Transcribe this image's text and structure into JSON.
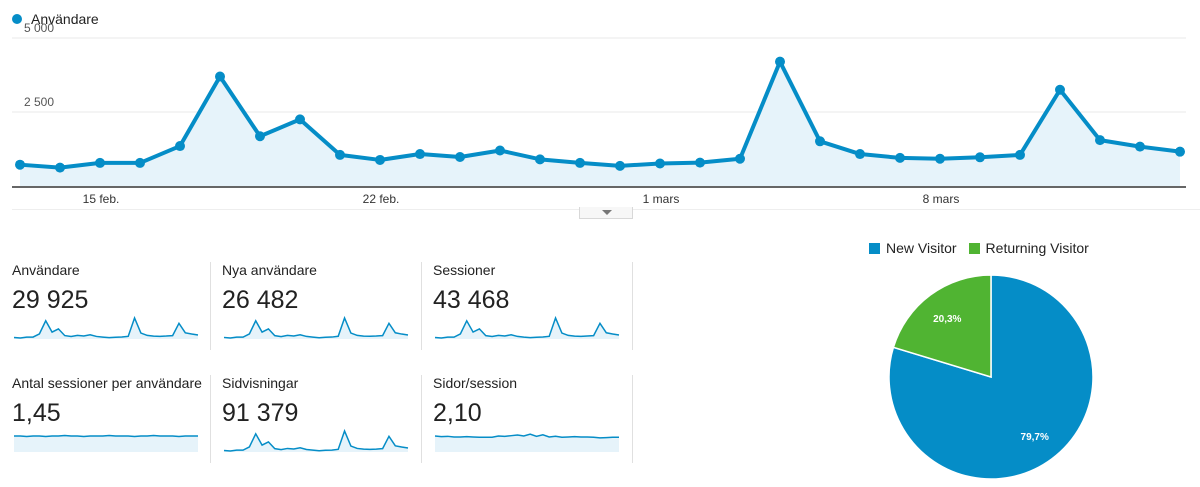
{
  "legend": {
    "label": "Användare",
    "color": "#058dc7"
  },
  "chart_data": [
    {
      "type": "area",
      "series": [
        {
          "name": "Användare",
          "values": [
            720,
            620,
            780,
            780,
            1350,
            3700,
            1680,
            2250,
            1050,
            880,
            1080,
            980,
            1200,
            900,
            780,
            680,
            760,
            790,
            920,
            4200,
            1510,
            1080,
            950,
            920,
            970,
            1050,
            3250,
            1550,
            1330,
            1160
          ]
        }
      ],
      "x_tick_labels": [
        "15 feb.",
        "22 feb.",
        "1 mars",
        "8 mars"
      ],
      "x_tick_points": [
        2,
        9,
        16,
        23
      ],
      "y_ticks": [
        "2 500",
        "5 000"
      ],
      "ylim": [
        0,
        5000
      ],
      "grid": true
    },
    {
      "type": "pie",
      "categories": [
        "New Visitor",
        "Returning Visitor"
      ],
      "values": [
        79.7,
        20.3
      ],
      "labels": [
        "79,7%",
        "20,3%"
      ],
      "colors": [
        "#058dc7",
        "#50b432"
      ],
      "legend_position": "top"
    }
  ],
  "metrics": [
    {
      "label": "Användare",
      "value": "29 925",
      "spark": [
        720,
        620,
        780,
        780,
        1350,
        3700,
        1680,
        2250,
        1050,
        880,
        1080,
        980,
        1200,
        900,
        780,
        680,
        760,
        790,
        920,
        4200,
        1510,
        1080,
        950,
        920,
        970,
        1050,
        3250,
        1550,
        1330,
        1160
      ]
    },
    {
      "label": "Nya användare",
      "value": "26 482",
      "spark": [
        640,
        550,
        690,
        690,
        1200,
        3300,
        1490,
        2000,
        930,
        780,
        960,
        870,
        1070,
        800,
        690,
        600,
        670,
        700,
        820,
        3740,
        1340,
        960,
        840,
        820,
        860,
        930,
        2890,
        1380,
        1180,
        1030
      ]
    },
    {
      "label": "Sessioner",
      "value": "43 468",
      "spark": [
        1040,
        900,
        1130,
        1130,
        1960,
        5360,
        2440,
        3260,
        1520,
        1280,
        1570,
        1420,
        1740,
        1310,
        1130,
        990,
        1100,
        1150,
        1330,
        6090,
        2190,
        1570,
        1380,
        1330,
        1410,
        1520,
        4710,
        2250,
        1930,
        1680
      ]
    },
    {
      "label": "Antal sessioner per användare",
      "value": "1,45",
      "spark": [
        1.45,
        1.45,
        1.44,
        1.45,
        1.45,
        1.44,
        1.45,
        1.45,
        1.46,
        1.45,
        1.45,
        1.44,
        1.45,
        1.45,
        1.45,
        1.46,
        1.45,
        1.45,
        1.45,
        1.44,
        1.45,
        1.45,
        1.46,
        1.45,
        1.45,
        1.45,
        1.44,
        1.45,
        1.45,
        1.45
      ]
    },
    {
      "label": "Sidvisningar",
      "value": "91 379",
      "spark": [
        2200,
        1900,
        2380,
        2380,
        4100,
        11250,
        5120,
        6850,
        3200,
        2680,
        3290,
        2980,
        3650,
        2740,
        2380,
        2070,
        2310,
        2400,
        2800,
        12780,
        4600,
        3290,
        2890,
        2800,
        2950,
        3200,
        9890,
        4720,
        4050,
        3530
      ]
    },
    {
      "label": "Sidor/session",
      "value": "2,10",
      "spark": [
        2.12,
        2.1,
        2.11,
        2.09,
        2.09,
        2.1,
        2.09,
        2.08,
        2.08,
        2.08,
        2.12,
        2.11,
        2.13,
        2.15,
        2.12,
        2.18,
        2.11,
        2.16,
        2.09,
        2.11,
        2.08,
        2.09,
        2.1,
        2.09,
        2.09,
        2.08,
        2.06,
        2.07,
        2.08,
        2.08
      ]
    }
  ]
}
